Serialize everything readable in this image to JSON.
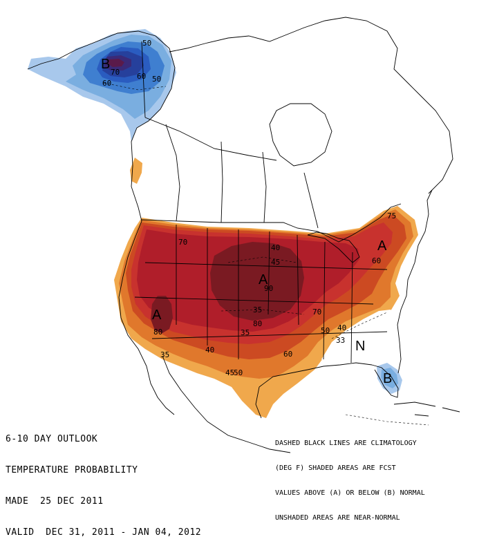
{
  "map": {
    "title_lines": [
      "6-10 DAY OUTLOOK",
      "TEMPERATURE PROBABILITY",
      "MADE  25 DEC 2011",
      "VALID  DEC 31, 2011 - JAN 04, 2012"
    ],
    "legend_lines": [
      "DASHED BLACK LINES ARE CLIMATOLOGY",
      "(DEG F) SHADED AREAS ARE FCST",
      "VALUES ABOVE (A) OR BELOW (B) NORMAL",
      "UNSHADED AREAS ARE NEAR-NORMAL"
    ],
    "region_letters": {
      "alaska_below": "B",
      "plains_above": "A",
      "southwest_above": "A",
      "northeast_above": "A",
      "southeast_near_normal": "N",
      "florida_below": "B"
    },
    "contour_labels": {
      "ak_50_north": "50",
      "ak_70": "70",
      "ak_60": "60",
      "ak_50_east": "50",
      "ak_60_west": "60",
      "west_70": "70",
      "plains_40": "40",
      "plains_45": "45",
      "plains_90": "90",
      "plains_35": "35",
      "plains_80": "80",
      "sw_80": "80",
      "south_35": "35",
      "south_40": "40",
      "south_45": "45",
      "south_50": "50",
      "south_60": "60",
      "se_70": "70",
      "se_50": "50",
      "se_40": "40",
      "se_33": "33",
      "ne_60": "60",
      "ne_75": "75",
      "sw_35": "35"
    },
    "colors": {
      "above_33": "#f0a84c",
      "above_40": "#e0782c",
      "above_50": "#cc4a22",
      "above_60": "#c8322e",
      "above_70": "#b01e2a",
      "above_80": "#7a1a22",
      "above_90": "#5a1218",
      "below_33": "#a8c8ec",
      "below_40": "#7aaee0",
      "below_50": "#3f7fd0",
      "below_60": "#2a5cc0",
      "below_70": "#26409c",
      "below_80": "#3a2a78",
      "below_90": "#5a1a4a",
      "outline": "#000000",
      "background": "#ffffff"
    }
  }
}
